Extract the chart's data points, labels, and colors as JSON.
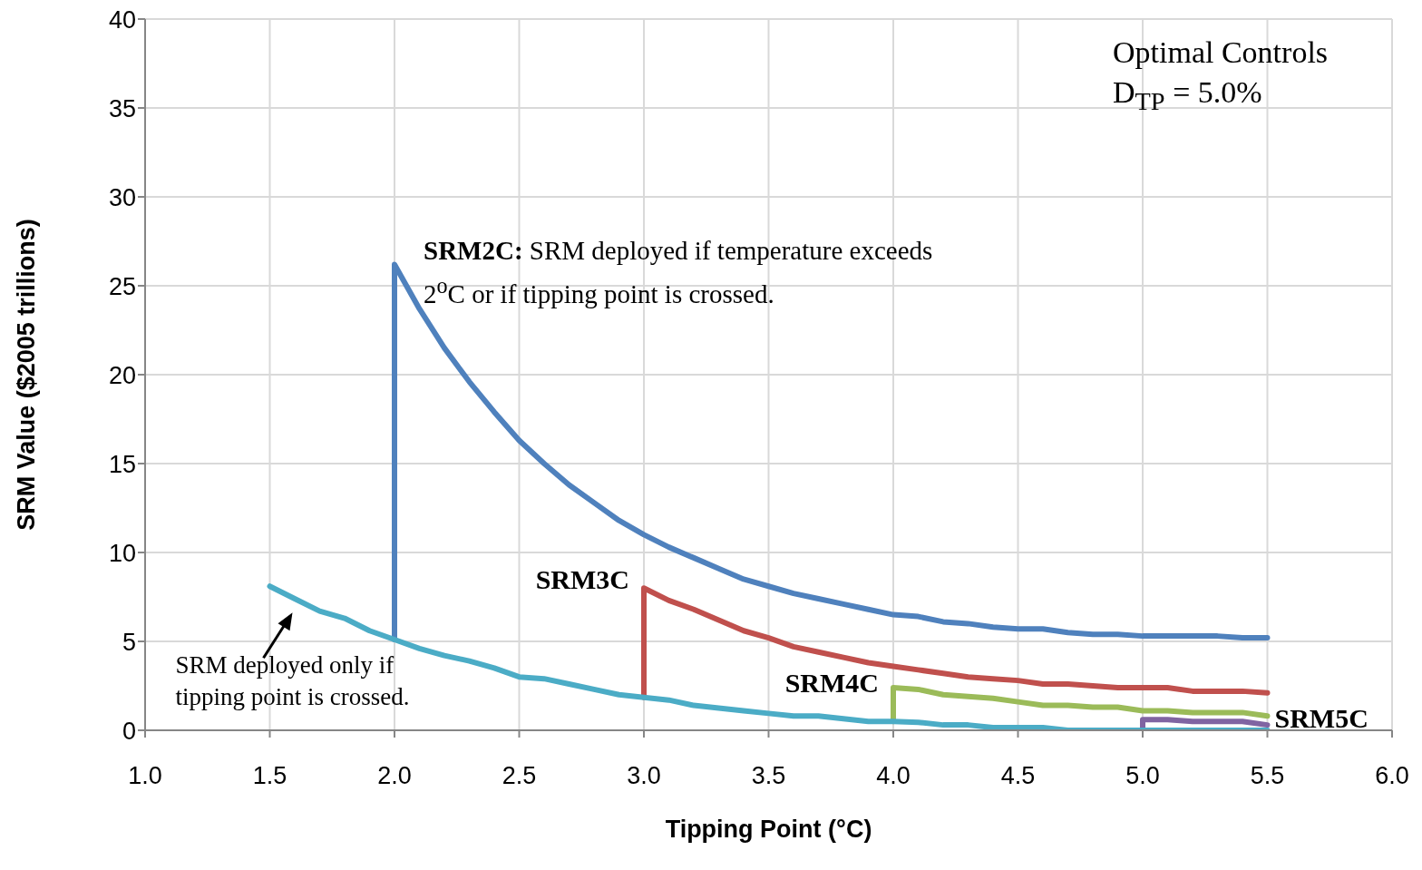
{
  "chart_data": {
    "type": "line",
    "xlabel": "Tipping Point (°C)",
    "ylabel": "SRM Value  ($2005 trillions)",
    "xlim": [
      1,
      6
    ],
    "xticks": [
      {
        "value": 1,
        "label": "1.0"
      },
      {
        "value": 1.5,
        "label": "1.5"
      },
      {
        "value": 2,
        "label": "2.0"
      },
      {
        "value": 2.5,
        "label": "2.5"
      },
      {
        "value": 3,
        "label": "3.0"
      },
      {
        "value": 3.5,
        "label": "3.5"
      },
      {
        "value": 4,
        "label": "4.0"
      },
      {
        "value": 4.5,
        "label": "4.5"
      },
      {
        "value": 5,
        "label": "5.0"
      },
      {
        "value": 5.5,
        "label": "5.5"
      },
      {
        "value": 6,
        "label": "6.0"
      }
    ],
    "ylim": [
      0,
      40
    ],
    "yticks": [
      0,
      5,
      10,
      15,
      20,
      25,
      30,
      35,
      40
    ],
    "grid": true,
    "marker": "none",
    "line_style": "solid",
    "annotations": [
      "SRM deployed if temperature exceeds 2$^{o}$C or if tipping point is crossed.",
      "SRM deployed only if tipping point is crossed.",
      "Optimal Controls",
      "D$_{TP}$ = 5.0%"
    ],
    "series": [
      {
        "name": "SRM2C:",
        "color": "#4f81bd",
        "x": [
          2.0,
          2.0,
          2.1,
          2.2,
          2.3,
          2.4,
          2.5,
          2.6,
          2.7,
          2.8,
          2.9,
          3.0,
          3.1,
          3.2,
          3.3,
          3.4,
          3.5,
          3.6,
          3.7,
          3.8,
          3.9,
          4.0,
          4.1,
          4.2,
          4.3,
          4.4,
          4.5,
          4.6,
          4.7,
          4.8,
          4.9,
          5.0,
          5.1,
          5.2,
          5.3,
          5.4,
          5.5
        ],
        "values": [
          5.1,
          26.2,
          23.7,
          21.5,
          19.6,
          17.9,
          16.3,
          15.0,
          13.8,
          12.8,
          11.8,
          11.0,
          10.3,
          9.7,
          9.1,
          8.5,
          8.1,
          7.7,
          7.4,
          7.1,
          6.8,
          6.5,
          6.4,
          6.1,
          6.0,
          5.8,
          5.7,
          5.7,
          5.5,
          5.4,
          5.4,
          5.3,
          5.3,
          5.3,
          5.3,
          5.2,
          5.2
        ]
      },
      {
        "name": "SRM3C",
        "color": "#c0504d",
        "x": [
          3.0,
          3.0,
          3.1,
          3.2,
          3.3,
          3.4,
          3.5,
          3.6,
          3.7,
          3.8,
          3.9,
          4.0,
          4.1,
          4.2,
          4.3,
          4.4,
          4.5,
          4.6,
          4.7,
          4.8,
          4.9,
          5.0,
          5.1,
          5.2,
          5.3,
          5.4,
          5.5
        ],
        "values": [
          1.85,
          8.0,
          7.3,
          6.8,
          6.2,
          5.6,
          5.2,
          4.7,
          4.4,
          4.1,
          3.8,
          3.6,
          3.4,
          3.2,
          3.0,
          2.9,
          2.8,
          2.6,
          2.6,
          2.5,
          2.4,
          2.4,
          2.4,
          2.2,
          2.2,
          2.2,
          2.1
        ]
      },
      {
        "name": "SRM4C",
        "color": "#9bbb59",
        "x": [
          4.0,
          4.0,
          4.1,
          4.2,
          4.3,
          4.4,
          4.5,
          4.6,
          4.7,
          4.8,
          4.9,
          5.0,
          5.1,
          5.2,
          5.3,
          5.4,
          5.5
        ],
        "values": [
          0.5,
          2.4,
          2.3,
          2.0,
          1.9,
          1.8,
          1.6,
          1.4,
          1.4,
          1.3,
          1.3,
          1.1,
          1.1,
          1.0,
          1.0,
          1.0,
          0.8
        ]
      },
      {
        "name": "SRM5C",
        "color": "#8064a2",
        "x": [
          5.0,
          5.0,
          5.1,
          5.2,
          5.3,
          5.4,
          5.5
        ],
        "values": [
          0,
          0.6,
          0.6,
          0.5,
          0.5,
          0.5,
          0.3
        ]
      },
      {
        "color": "#4bacc6",
        "x": [
          1.5,
          1.6,
          1.7,
          1.8,
          1.9,
          2.0,
          2.1,
          2.2,
          2.3,
          2.4,
          2.5,
          2.6,
          2.7,
          2.8,
          2.9,
          3.0,
          3.1,
          3.2,
          3.3,
          3.4,
          3.5,
          3.6,
          3.7,
          3.8,
          3.9,
          4.0,
          4.1,
          4.2,
          4.3,
          4.4,
          4.5,
          4.6,
          4.7,
          4.8,
          4.9,
          5.0,
          5.1,
          5.2,
          5.3,
          5.4,
          5.5
        ],
        "values": [
          8.1,
          7.4,
          6.7,
          6.3,
          5.6,
          5.1,
          4.6,
          4.2,
          3.9,
          3.5,
          3.0,
          2.9,
          2.6,
          2.3,
          2.0,
          1.85,
          1.7,
          1.4,
          1.25,
          1.1,
          0.95,
          0.8,
          0.8,
          0.65,
          0.5,
          0.5,
          0.45,
          0.3,
          0.3,
          0.15,
          0.15,
          0.15,
          0,
          0,
          0,
          0,
          0,
          0,
          0,
          0,
          0
        ]
      }
    ]
  }
}
